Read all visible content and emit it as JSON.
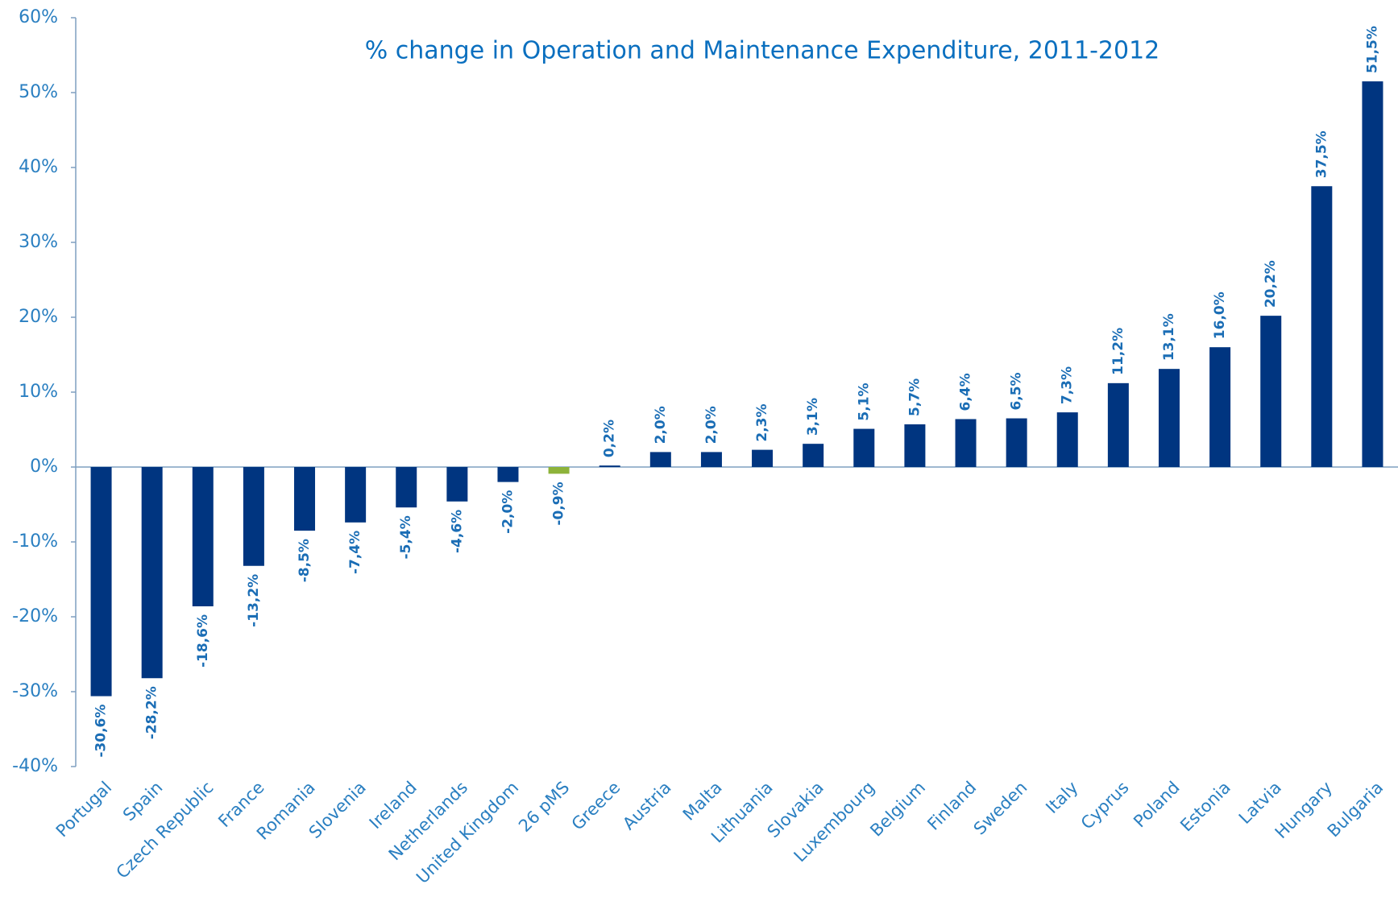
{
  "chart_data": {
    "type": "bar",
    "title": "% change in Operation and Maintenance Expenditure, 2011-2012",
    "categories": [
      "Portugal",
      "Spain",
      "Czech Republic",
      "France",
      "Romania",
      "Slovenia",
      "Ireland",
      "Netherlands",
      "United Kingdom",
      "26 pMS",
      "Greece",
      "Austria",
      "Malta",
      "Lithuania",
      "Slovakia",
      "Luxembourg",
      "Belgium",
      "Finland",
      "Sweden",
      "Italy",
      "Cyprus",
      "Poland",
      "Estonia",
      "Latvia",
      "Hungary",
      "Bulgaria"
    ],
    "values": [
      -30.6,
      -28.2,
      -18.6,
      -13.2,
      -8.5,
      -7.4,
      -5.4,
      -4.6,
      -2.0,
      -0.9,
      0.2,
      2.0,
      2.0,
      2.3,
      3.1,
      5.1,
      5.7,
      6.4,
      6.5,
      7.3,
      11.2,
      13.1,
      16.0,
      20.2,
      37.5,
      51.5
    ],
    "value_labels": [
      "-30,6%",
      "-28,2%",
      "-18,6%",
      "-13,2%",
      "-8,5%",
      "-7,4%",
      "-5,4%",
      "-4,6%",
      "-2,0%",
      "-0,9%",
      "0,2%",
      "2,0%",
      "2,0%",
      "2,3%",
      "3,1%",
      "5,1%",
      "5,7%",
      "6,4%",
      "6,5%",
      "7,3%",
      "11,2%",
      "13,1%",
      "16,0%",
      "20,2%",
      "37,5%",
      "51,5%"
    ],
    "colors": [
      "#003580",
      "#003580",
      "#003580",
      "#003580",
      "#003580",
      "#003580",
      "#003580",
      "#003580",
      "#003580",
      "#8db33a",
      "#003580",
      "#003580",
      "#003580",
      "#003580",
      "#003580",
      "#003580",
      "#003580",
      "#003580",
      "#003580",
      "#003580",
      "#003580",
      "#003580",
      "#003580",
      "#003580",
      "#003580",
      "#003580"
    ],
    "ylim": [
      -40,
      60
    ],
    "yticks": [
      {
        "value": -40,
        "label": "-40%"
      },
      {
        "value": -30,
        "label": "-30%"
      },
      {
        "value": -20,
        "label": "-20%"
      },
      {
        "value": -10,
        "label": "-10%"
      },
      {
        "value": 0,
        "label": "0%"
      },
      {
        "value": 10,
        "label": "10%"
      },
      {
        "value": 20,
        "label": "20%"
      },
      {
        "value": 30,
        "label": "30%"
      },
      {
        "value": 40,
        "label": "40%"
      },
      {
        "value": 50,
        "label": "50%"
      },
      {
        "value": 60,
        "label": "60%"
      }
    ],
    "grid": false
  }
}
